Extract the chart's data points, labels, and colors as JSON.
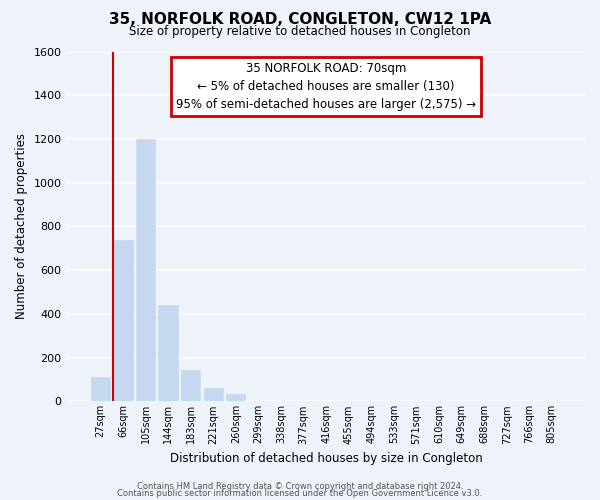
{
  "title": "35, NORFOLK ROAD, CONGLETON, CW12 1PA",
  "subtitle": "Size of property relative to detached houses in Congleton",
  "xlabel": "Distribution of detached houses by size in Congleton",
  "ylabel": "Number of detached properties",
  "bar_labels": [
    "27sqm",
    "66sqm",
    "105sqm",
    "144sqm",
    "183sqm",
    "221sqm",
    "260sqm",
    "299sqm",
    "338sqm",
    "377sqm",
    "416sqm",
    "455sqm",
    "494sqm",
    "533sqm",
    "571sqm",
    "610sqm",
    "649sqm",
    "688sqm",
    "727sqm",
    "766sqm",
    "805sqm"
  ],
  "bar_heights": [
    110,
    740,
    1200,
    440,
    145,
    60,
    35,
    0,
    0,
    0,
    0,
    0,
    0,
    0,
    0,
    0,
    0,
    0,
    0,
    0,
    0
  ],
  "bar_color": "#c5d8ef",
  "bar_edge_color": "#c5d8ef",
  "ylim": [
    0,
    1600
  ],
  "yticks": [
    0,
    200,
    400,
    600,
    800,
    1000,
    1200,
    1400,
    1600
  ],
  "marker_color": "#cc0000",
  "annotation_title": "35 NORFOLK ROAD: 70sqm",
  "annotation_line1": "← 5% of detached houses are smaller (130)",
  "annotation_line2": "95% of semi-detached houses are larger (2,575) →",
  "annotation_box_color": "#ffffff",
  "annotation_box_edge": "#cc0000",
  "footer_line1": "Contains HM Land Registry data © Crown copyright and database right 2024.",
  "footer_line2": "Contains public sector information licensed under the Open Government Licence v3.0.",
  "background_color": "#eef2f9",
  "grid_color": "#ffffff"
}
